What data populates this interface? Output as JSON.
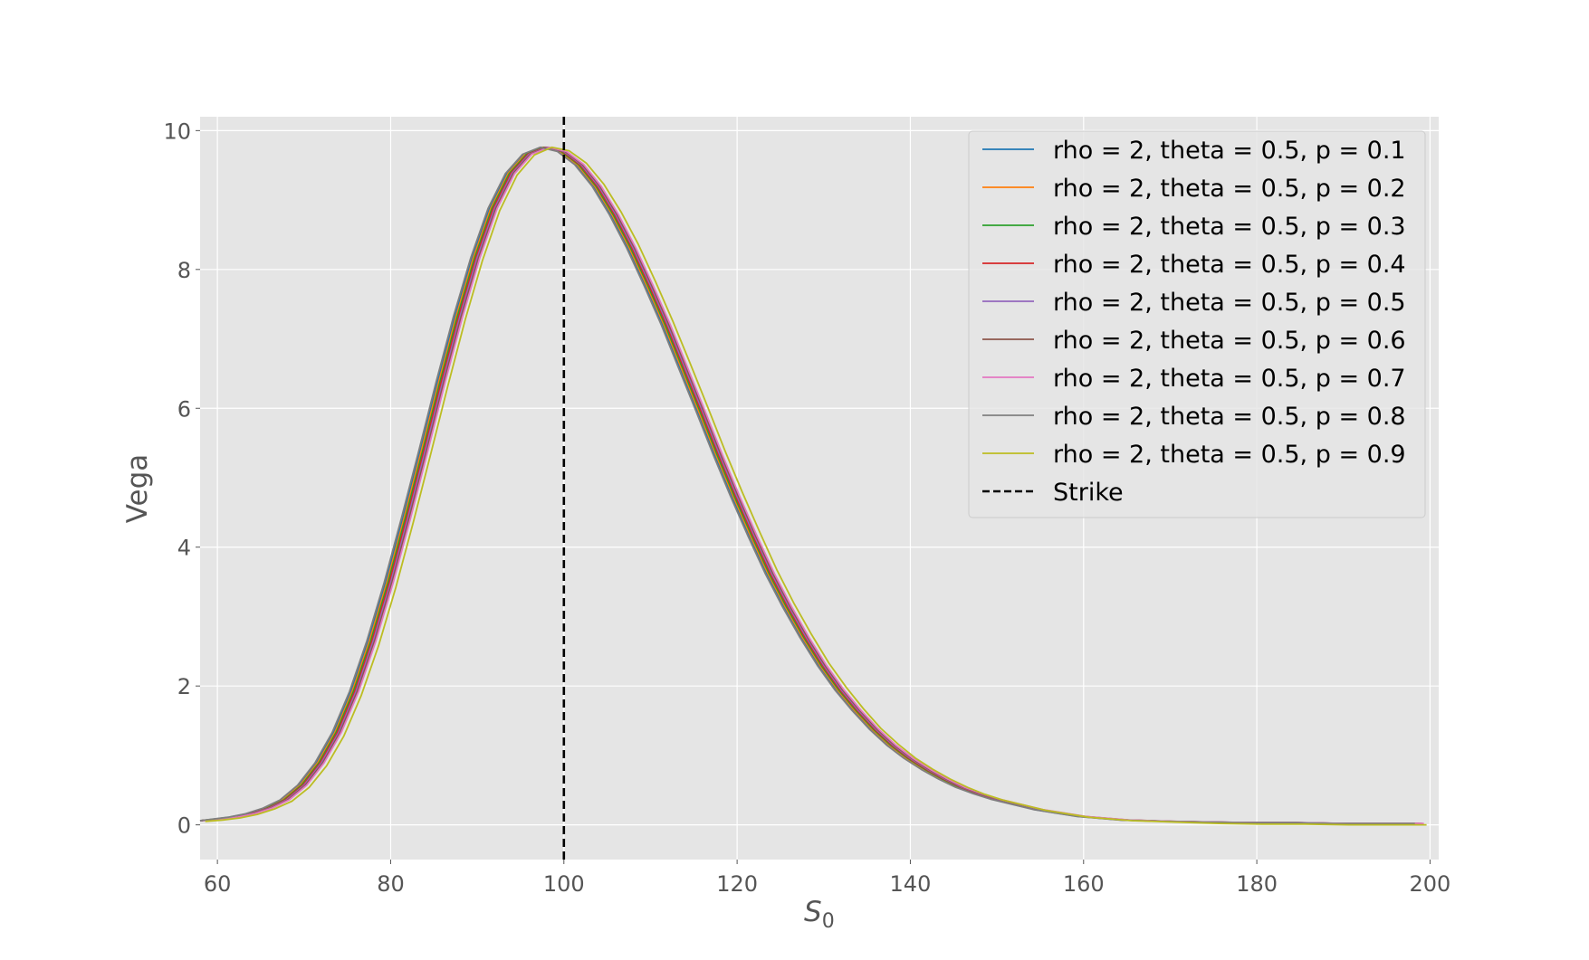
{
  "chart_data": {
    "type": "line",
    "title": "",
    "xlabel": "S",
    "xlabel_subscript": "0",
    "ylabel": "Vega",
    "xlim": [
      58,
      201
    ],
    "ylim": [
      -0.5,
      10.2
    ],
    "xticks": [
      60,
      80,
      100,
      120,
      140,
      160,
      180,
      200
    ],
    "yticks": [
      0,
      2,
      4,
      6,
      8,
      10
    ],
    "grid": true,
    "legend_position": "top-right",
    "x": [
      58,
      60,
      62,
      64,
      66,
      68,
      70,
      72,
      74,
      76,
      78,
      80,
      82,
      84,
      86,
      88,
      90,
      92,
      94,
      96,
      98,
      100,
      102,
      104,
      106,
      108,
      110,
      112,
      114,
      116,
      118,
      120,
      122,
      124,
      126,
      128,
      130,
      132,
      134,
      136,
      138,
      140,
      142,
      144,
      146,
      148,
      150,
      155,
      160,
      165,
      170,
      175,
      180,
      185,
      190,
      195,
      199
    ],
    "series": [
      {
        "name": "rho = 2, theta = 0.5, p = 0.1",
        "color": "#1f77b4",
        "x_shift": -0.6,
        "tail": 0.02,
        "values": [
          0.06,
          0.08,
          0.11,
          0.16,
          0.24,
          0.36,
          0.57,
          0.89,
          1.33,
          1.92,
          2.65,
          3.49,
          4.42,
          5.39,
          6.38,
          7.32,
          8.17,
          8.88,
          9.38,
          9.66,
          9.76,
          9.7,
          9.51,
          9.2,
          8.79,
          8.31,
          7.77,
          7.2,
          6.58,
          5.96,
          5.33,
          4.73,
          4.16,
          3.62,
          3.14,
          2.7,
          2.3,
          1.95,
          1.65,
          1.38,
          1.15,
          0.96,
          0.8,
          0.66,
          0.54,
          0.45,
          0.37,
          0.22,
          0.12,
          0.07,
          0.05,
          0.04,
          0.03,
          0.03,
          0.02,
          0.02,
          0.02
        ]
      },
      {
        "name": "rho = 2, theta = 0.5, p = 0.2",
        "color": "#ff7f0e",
        "x_shift": -0.45,
        "tail": 0.02,
        "values": [
          0.06,
          0.08,
          0.11,
          0.16,
          0.24,
          0.36,
          0.57,
          0.89,
          1.33,
          1.92,
          2.65,
          3.49,
          4.42,
          5.39,
          6.38,
          7.32,
          8.17,
          8.88,
          9.38,
          9.66,
          9.76,
          9.7,
          9.51,
          9.2,
          8.79,
          8.31,
          7.77,
          7.2,
          6.58,
          5.96,
          5.33,
          4.73,
          4.16,
          3.62,
          3.14,
          2.7,
          2.3,
          1.95,
          1.65,
          1.38,
          1.15,
          0.96,
          0.8,
          0.66,
          0.54,
          0.45,
          0.37,
          0.22,
          0.12,
          0.07,
          0.05,
          0.04,
          0.03,
          0.03,
          0.02,
          0.02,
          0.02
        ]
      },
      {
        "name": "rho = 2, theta = 0.5, p = 0.3",
        "color": "#2ca02c",
        "x_shift": -0.3,
        "tail": 0.02,
        "values": [
          0.06,
          0.08,
          0.11,
          0.16,
          0.24,
          0.36,
          0.57,
          0.89,
          1.33,
          1.92,
          2.65,
          3.49,
          4.42,
          5.39,
          6.38,
          7.32,
          8.17,
          8.88,
          9.38,
          9.66,
          9.76,
          9.7,
          9.51,
          9.2,
          8.79,
          8.31,
          7.77,
          7.2,
          6.58,
          5.96,
          5.33,
          4.73,
          4.16,
          3.62,
          3.14,
          2.7,
          2.3,
          1.95,
          1.65,
          1.38,
          1.15,
          0.96,
          0.8,
          0.66,
          0.54,
          0.45,
          0.37,
          0.22,
          0.12,
          0.07,
          0.05,
          0.04,
          0.03,
          0.03,
          0.02,
          0.02,
          0.02
        ]
      },
      {
        "name": "rho = 2, theta = 0.5, p = 0.4",
        "color": "#d62728",
        "x_shift": -0.15,
        "tail": 0.02,
        "values": [
          0.06,
          0.08,
          0.11,
          0.16,
          0.24,
          0.36,
          0.57,
          0.89,
          1.33,
          1.92,
          2.65,
          3.49,
          4.42,
          5.39,
          6.38,
          7.32,
          8.17,
          8.88,
          9.38,
          9.66,
          9.76,
          9.7,
          9.51,
          9.2,
          8.79,
          8.31,
          7.77,
          7.2,
          6.58,
          5.96,
          5.33,
          4.73,
          4.16,
          3.62,
          3.14,
          2.7,
          2.3,
          1.95,
          1.65,
          1.38,
          1.15,
          0.96,
          0.8,
          0.66,
          0.54,
          0.45,
          0.37,
          0.22,
          0.12,
          0.07,
          0.05,
          0.04,
          0.03,
          0.03,
          0.02,
          0.02,
          0.02
        ]
      },
      {
        "name": "rho = 2, theta = 0.5, p = 0.5",
        "color": "#9467bd",
        "x_shift": 0.0,
        "tail": 0.02,
        "values": [
          0.06,
          0.08,
          0.11,
          0.16,
          0.24,
          0.36,
          0.57,
          0.89,
          1.33,
          1.92,
          2.65,
          3.49,
          4.42,
          5.39,
          6.38,
          7.32,
          8.17,
          8.88,
          9.38,
          9.66,
          9.76,
          9.7,
          9.51,
          9.2,
          8.79,
          8.31,
          7.77,
          7.2,
          6.58,
          5.96,
          5.33,
          4.73,
          4.16,
          3.62,
          3.14,
          2.7,
          2.3,
          1.95,
          1.65,
          1.38,
          1.15,
          0.96,
          0.8,
          0.66,
          0.54,
          0.45,
          0.37,
          0.22,
          0.12,
          0.07,
          0.05,
          0.04,
          0.03,
          0.03,
          0.02,
          0.02,
          0.02
        ]
      },
      {
        "name": "rho = 2, theta = 0.5, p = 0.6",
        "color": "#8c564b",
        "x_shift": 0.15,
        "tail": 0.02,
        "values": [
          0.06,
          0.08,
          0.11,
          0.16,
          0.24,
          0.36,
          0.57,
          0.89,
          1.33,
          1.92,
          2.65,
          3.49,
          4.42,
          5.39,
          6.38,
          7.32,
          8.17,
          8.88,
          9.38,
          9.66,
          9.76,
          9.7,
          9.51,
          9.2,
          8.79,
          8.31,
          7.77,
          7.2,
          6.58,
          5.96,
          5.33,
          4.73,
          4.16,
          3.62,
          3.14,
          2.7,
          2.3,
          1.95,
          1.65,
          1.38,
          1.15,
          0.96,
          0.8,
          0.66,
          0.54,
          0.45,
          0.37,
          0.22,
          0.12,
          0.07,
          0.05,
          0.04,
          0.03,
          0.03,
          0.02,
          0.02,
          0.02
        ]
      },
      {
        "name": "rho = 2, theta = 0.5, p = 0.7",
        "color": "#e377c2",
        "x_shift": 0.3,
        "tail": 0.02,
        "values": [
          0.06,
          0.08,
          0.11,
          0.16,
          0.24,
          0.36,
          0.57,
          0.89,
          1.33,
          1.92,
          2.65,
          3.49,
          4.42,
          5.39,
          6.38,
          7.32,
          8.17,
          8.88,
          9.38,
          9.66,
          9.76,
          9.7,
          9.51,
          9.2,
          8.79,
          8.31,
          7.77,
          7.2,
          6.58,
          5.96,
          5.33,
          4.73,
          4.16,
          3.62,
          3.14,
          2.7,
          2.3,
          1.95,
          1.65,
          1.38,
          1.15,
          0.96,
          0.8,
          0.66,
          0.54,
          0.45,
          0.37,
          0.22,
          0.12,
          0.07,
          0.05,
          0.04,
          0.03,
          0.03,
          0.02,
          0.02,
          0.02
        ]
      },
      {
        "name": "rho = 2, theta = 0.5, p = 0.8",
        "color": "#7f7f7f",
        "x_shift": -0.75,
        "tail": 0.02,
        "values": [
          0.06,
          0.08,
          0.11,
          0.16,
          0.24,
          0.36,
          0.57,
          0.89,
          1.33,
          1.92,
          2.65,
          3.49,
          4.42,
          5.39,
          6.38,
          7.32,
          8.17,
          8.88,
          9.38,
          9.66,
          9.76,
          9.7,
          9.51,
          9.2,
          8.79,
          8.31,
          7.77,
          7.2,
          6.58,
          5.96,
          5.33,
          4.73,
          4.16,
          3.62,
          3.14,
          2.7,
          2.3,
          1.95,
          1.65,
          1.38,
          1.15,
          0.96,
          0.8,
          0.66,
          0.54,
          0.45,
          0.37,
          0.22,
          0.12,
          0.07,
          0.05,
          0.04,
          0.03,
          0.03,
          0.02,
          0.02,
          0.02
        ]
      },
      {
        "name": "rho = 2, theta = 0.5, p = 0.9",
        "color": "#bcbd22",
        "x_shift": 0.6,
        "tail": 0.0,
        "values": [
          0.05,
          0.07,
          0.1,
          0.15,
          0.23,
          0.34,
          0.54,
          0.85,
          1.28,
          1.86,
          2.58,
          3.42,
          4.35,
          5.33,
          6.32,
          7.27,
          8.13,
          8.85,
          9.36,
          9.65,
          9.76,
          9.71,
          9.53,
          9.23,
          8.83,
          8.36,
          7.82,
          7.25,
          6.64,
          6.02,
          5.39,
          4.79,
          4.22,
          3.67,
          3.18,
          2.74,
          2.33,
          1.98,
          1.67,
          1.39,
          1.16,
          0.96,
          0.8,
          0.66,
          0.54,
          0.44,
          0.36,
          0.21,
          0.11,
          0.06,
          0.04,
          0.02,
          0.01,
          0.01,
          0.0,
          0.0,
          0.0
        ]
      }
    ],
    "reference_line": {
      "name": "Strike",
      "x": 100,
      "color": "#000000",
      "style": "dashed"
    }
  }
}
